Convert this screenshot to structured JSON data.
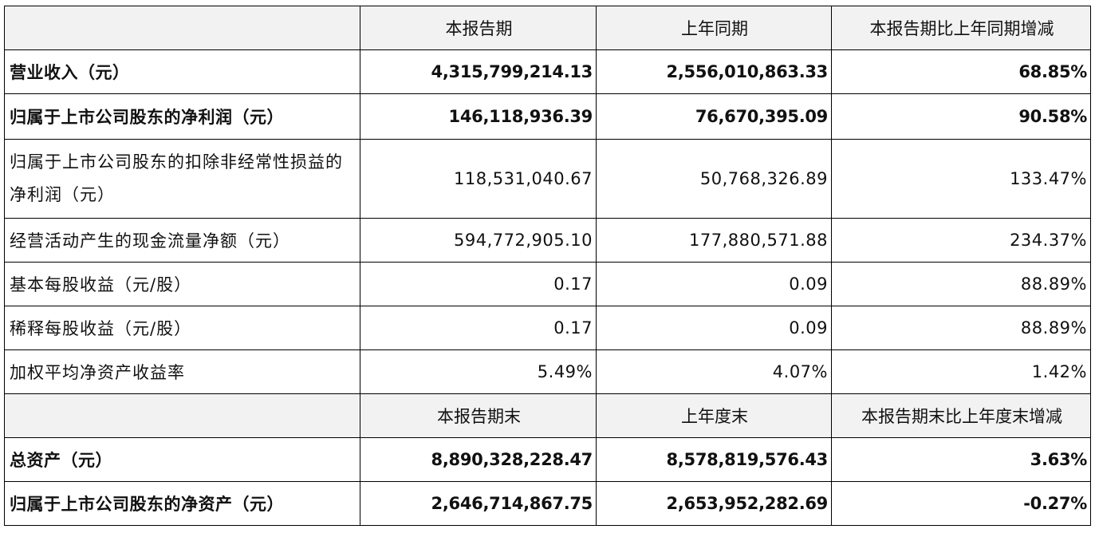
{
  "header1": [
    "",
    "本报告期",
    "上年同期",
    "本报告期比上年同期增减"
  ],
  "rows1": [
    {
      "label": "营业收入（元）",
      "values": [
        "4,315,799,214.13",
        "2,556,010,863.33",
        "68.85%"
      ],
      "bold": true
    },
    {
      "label": "归属于上市公司股东的净利润（元）",
      "values": [
        "146,118,936.39",
        "76,670,395.09",
        "90.58%"
      ],
      "bold": true
    },
    {
      "label": "归属于上市公司股东的扣除非经常性损益的净利润（元）",
      "values": [
        "118,531,040.67",
        "50,768,326.89",
        "133.47%"
      ],
      "bold": false
    },
    {
      "label": "经营活动产生的现金流量净额（元）",
      "values": [
        "594,772,905.10",
        "177,880,571.88",
        "234.37%"
      ],
      "bold": false
    },
    {
      "label": "基本每股收益（元/股）",
      "values": [
        "0.17",
        "0.09",
        "88.89%"
      ],
      "bold": false
    },
    {
      "label": "稀释每股收益（元/股）",
      "values": [
        "0.17",
        "0.09",
        "88.89%"
      ],
      "bold": false
    },
    {
      "label": "加权平均净资产收益率",
      "values": [
        "5.49%",
        "4.07%",
        "1.42%"
      ],
      "bold": false
    }
  ],
  "header2": [
    "",
    "本报告期末",
    "上年度末",
    "本报告期末比上年度末增减"
  ],
  "rows2": [
    {
      "label": "总资产（元）",
      "values": [
        "8,890,328,228.47",
        "8,578,819,576.43",
        "3.63%"
      ],
      "bold": true
    },
    {
      "label": "归属于上市公司股东的净资产（元）",
      "values": [
        "2,646,714,867.75",
        "2,653,952,282.69",
        "-0.27%"
      ],
      "bold": true
    }
  ]
}
